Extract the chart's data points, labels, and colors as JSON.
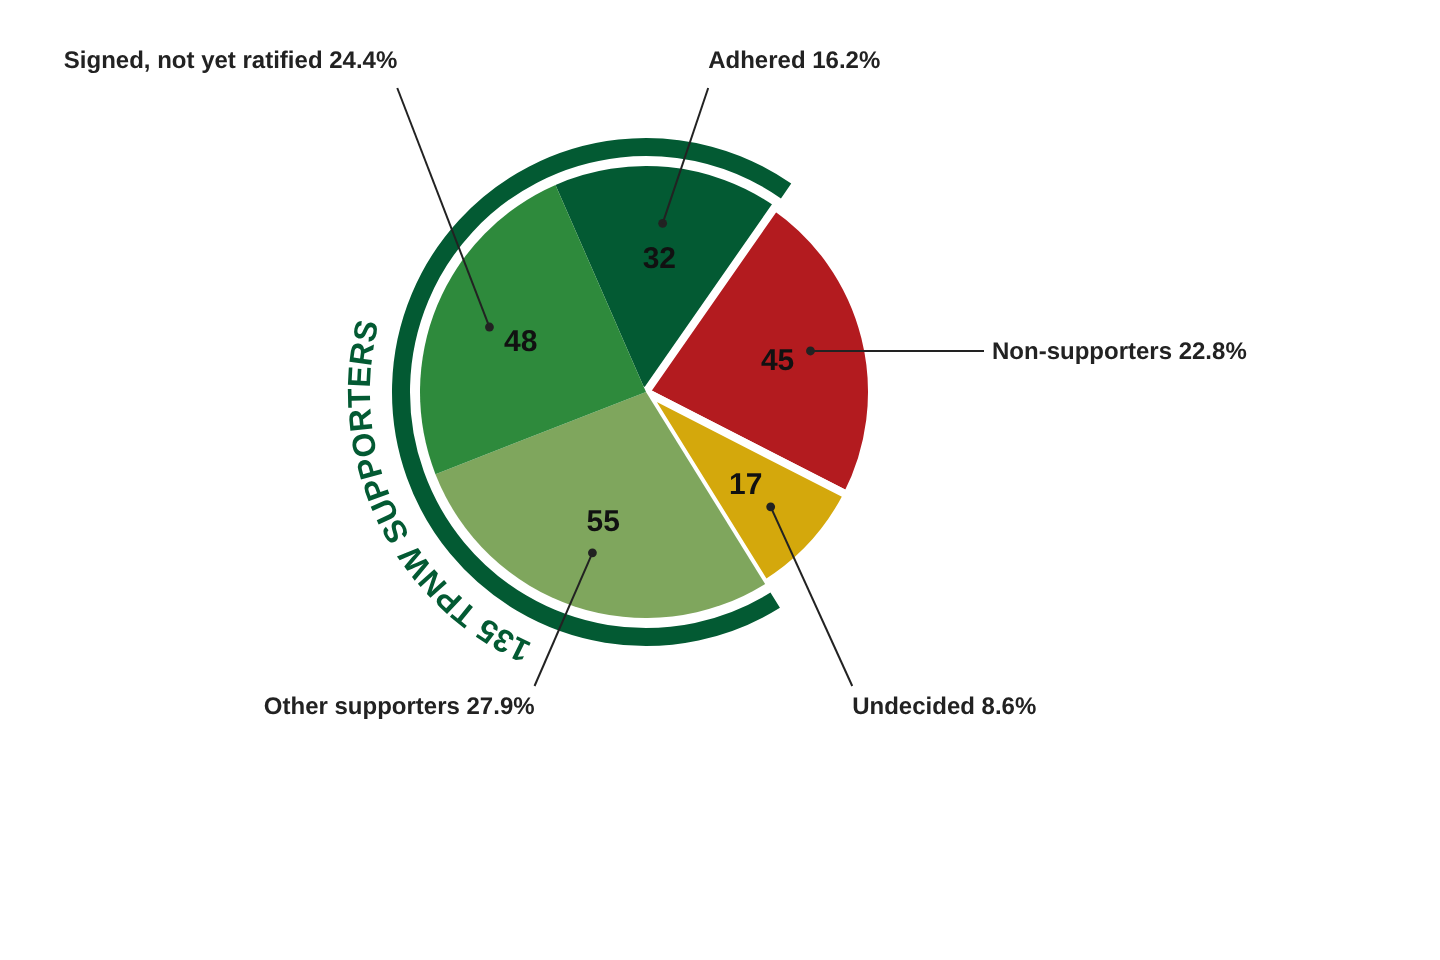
{
  "chart_data": {
    "type": "pie",
    "categories": [
      "Adhered 16.2%",
      "Non-supporters 22.8%",
      "Undecided 8.6%",
      "Other supporters 27.9%",
      "Signed, not yet ratified 24.4%"
    ],
    "values": [
      32,
      45,
      17,
      55,
      48
    ],
    "colors": [
      "#035a33",
      "#b31b1f",
      "#d4a80c",
      "#7fa65d",
      "#2e8a3c"
    ],
    "data_labels": true,
    "annotations": [
      "135 TPNW SUPPORTERS"
    ]
  }
}
